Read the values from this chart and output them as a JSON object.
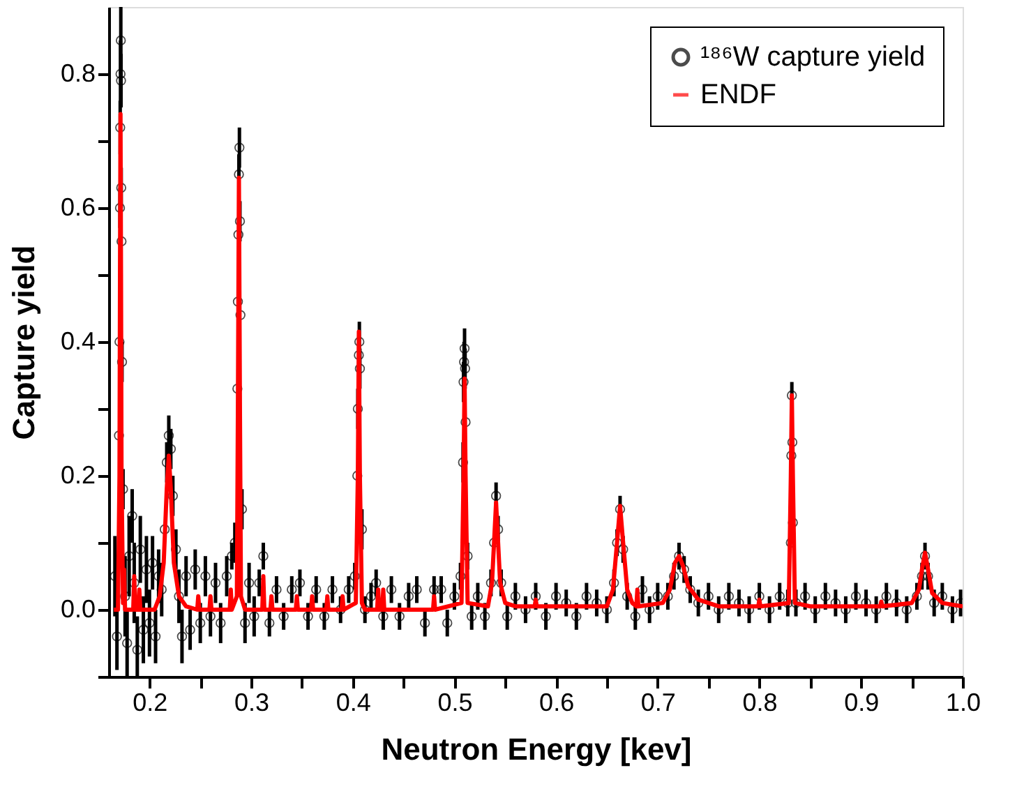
{
  "chart_data": {
    "type": "scatter",
    "xlabel": "Neutron Energy [kev]",
    "ylabel": "Capture yield",
    "xlim": [
      0.16,
      1.0
    ],
    "ylim": [
      -0.1,
      0.9
    ],
    "xticks": [
      0.2,
      {
        "value": 0.25,
        "label": null
      },
      0.3,
      {
        "value": 0.35,
        "label": null
      },
      0.4,
      {
        "value": 0.45,
        "label": null
      },
      0.5,
      {
        "value": 0.55,
        "label": null
      },
      0.6,
      {
        "value": 0.65,
        "label": null
      },
      0.7,
      {
        "value": 0.75,
        "label": null
      },
      0.8,
      {
        "value": 0.85,
        "label": null
      },
      0.9,
      {
        "value": 0.95,
        "label": null
      },
      {
        "value": 1.0,
        "label": "1.0"
      }
    ],
    "yticks": [
      {
        "value": -0.1,
        "label": null
      },
      {
        "value": 0,
        "label": "0.0"
      },
      {
        "value": 0.1,
        "label": null
      },
      0.2,
      {
        "value": 0.3,
        "label": null
      },
      0.4,
      {
        "value": 0.5,
        "label": null
      },
      0.6,
      {
        "value": 0.7,
        "label": null
      },
      0.8
    ],
    "grid": false,
    "legend": "top right",
    "series": [
      {
        "name": "¹⁸⁶W capture yield",
        "color": "#000000",
        "marker": "circle",
        "x": [
          0.166,
          0.168,
          0.17,
          0.1705,
          0.171,
          0.1712,
          0.1715,
          0.1718,
          0.172,
          0.1722,
          0.1725,
          0.173,
          0.174,
          0.176,
          0.178,
          0.18,
          0.183,
          0.185,
          0.188,
          0.191,
          0.194,
          0.197,
          0.2,
          0.203,
          0.206,
          0.209,
          0.212,
          0.215,
          0.217,
          0.219,
          0.221,
          0.223,
          0.226,
          0.229,
          0.232,
          0.236,
          0.24,
          0.245,
          0.25,
          0.255,
          0.26,
          0.265,
          0.27,
          0.276,
          0.281,
          0.284,
          0.2865,
          0.287,
          0.2875,
          0.288,
          0.2885,
          0.289,
          0.2895,
          0.291,
          0.294,
          0.298,
          0.303,
          0.308,
          0.312,
          0.318,
          0.325,
          0.332,
          0.34,
          0.348,
          0.356,
          0.364,
          0.372,
          0.38,
          0.388,
          0.396,
          0.402,
          0.4045,
          0.405,
          0.406,
          0.4065,
          0.407,
          0.409,
          0.412,
          0.418,
          0.423,
          0.43,
          0.438,
          0.446,
          0.455,
          0.463,
          0.471,
          0.48,
          0.487,
          0.493,
          0.5,
          0.506,
          0.5085,
          0.509,
          0.5095,
          0.51,
          0.5105,
          0.511,
          0.513,
          0.517,
          0.523,
          0.53,
          0.536,
          0.539,
          0.541,
          0.543,
          0.546,
          0.552,
          0.56,
          0.57,
          0.58,
          0.59,
          0.6,
          0.61,
          0.62,
          0.63,
          0.64,
          0.65,
          0.657,
          0.66,
          0.663,
          0.666,
          0.67,
          0.678,
          0.685,
          0.692,
          0.7,
          0.71,
          0.716,
          0.721,
          0.726,
          0.732,
          0.74,
          0.75,
          0.76,
          0.77,
          0.78,
          0.79,
          0.8,
          0.81,
          0.82,
          0.828,
          0.831,
          0.8315,
          0.832,
          0.8325,
          0.833,
          0.836,
          0.845,
          0.855,
          0.865,
          0.875,
          0.885,
          0.895,
          0.905,
          0.915,
          0.925,
          0.935,
          0.945,
          0.955,
          0.96,
          0.963,
          0.966,
          0.972,
          0.98,
          0.99,
          0.998
        ],
        "values": [
          0.05,
          -0.04,
          0.26,
          0.4,
          0.6,
          0.72,
          0.8,
          0.85,
          0.79,
          0.63,
          0.55,
          0.37,
          0.18,
          0.02,
          -0.05,
          0.08,
          0.14,
          0.04,
          -0.06,
          0.09,
          -0.03,
          0.06,
          -0.02,
          0.07,
          -0.04,
          0.05,
          0.03,
          0.12,
          0.22,
          0.26,
          0.24,
          0.17,
          0.09,
          0.02,
          -0.04,
          0.05,
          -0.03,
          0.06,
          -0.02,
          0.05,
          -0.01,
          0.04,
          -0.02,
          0.05,
          0.08,
          0.1,
          0.33,
          0.46,
          0.56,
          0.65,
          0.69,
          0.58,
          0.44,
          0.15,
          -0.02,
          0.04,
          -0.01,
          0.04,
          0.08,
          -0.02,
          0.03,
          -0.01,
          0.03,
          0.04,
          -0.01,
          0.03,
          -0.01,
          0.03,
          0.0,
          0.03,
          0.05,
          0.2,
          0.3,
          0.38,
          0.4,
          0.36,
          0.12,
          0.0,
          0.02,
          0.04,
          -0.01,
          0.03,
          -0.01,
          0.02,
          0.03,
          -0.02,
          0.03,
          0.03,
          -0.02,
          0.02,
          0.05,
          0.22,
          0.34,
          0.37,
          0.39,
          0.36,
          0.28,
          0.08,
          -0.01,
          0.02,
          -0.01,
          0.04,
          0.1,
          0.17,
          0.12,
          0.04,
          -0.01,
          0.02,
          0.0,
          0.02,
          -0.01,
          0.02,
          0.01,
          -0.01,
          0.02,
          0.01,
          0.0,
          0.04,
          0.1,
          0.15,
          0.09,
          0.02,
          -0.01,
          0.03,
          0.0,
          0.02,
          0.02,
          0.05,
          0.08,
          0.06,
          0.03,
          0.01,
          0.02,
          0.0,
          0.02,
          0.01,
          0.0,
          0.02,
          0.0,
          0.02,
          0.01,
          0.1,
          0.23,
          0.32,
          0.25,
          0.13,
          0.01,
          0.02,
          0.0,
          0.02,
          0.01,
          0.0,
          0.02,
          0.01,
          0.0,
          0.02,
          0.01,
          0.0,
          0.02,
          0.05,
          0.08,
          0.05,
          0.01,
          0.02,
          0.0,
          0.01
        ],
        "errors": [
          0.06,
          0.05,
          null,
          null,
          0.03,
          0.04,
          0.05,
          0.05,
          0.04,
          0.03,
          null,
          0.03,
          0.03,
          0.06,
          0.05,
          0.06,
          0.04,
          0.06,
          0.05,
          0.05,
          0.05,
          0.05,
          0.05,
          0.04,
          0.04,
          0.04,
          0.04,
          null,
          0.03,
          0.03,
          0.03,
          0.03,
          0.03,
          0.04,
          0.04,
          0.03,
          0.03,
          0.03,
          0.03,
          0.03,
          0.03,
          0.03,
          0.03,
          0.03,
          0.02,
          0.03,
          null,
          null,
          null,
          0.03,
          0.03,
          0.03,
          null,
          0.03,
          0.03,
          0.03,
          0.03,
          0.02,
          0.02,
          0.02,
          0.02,
          0.02,
          0.02,
          0.02,
          0.02,
          0.02,
          0.02,
          0.02,
          0.02,
          0.02,
          0.02,
          null,
          0.03,
          0.03,
          0.03,
          0.03,
          0.03,
          0.02,
          0.02,
          0.02,
          0.02,
          0.02,
          0.02,
          0.02,
          0.02,
          0.02,
          0.02,
          0.02,
          0.02,
          0.02,
          0.02,
          0.03,
          0.03,
          0.03,
          0.03,
          0.03,
          null,
          0.02,
          0.02,
          0.02,
          0.02,
          0.02,
          null,
          0.02,
          0.02,
          0.02,
          0.02,
          0.02,
          0.02,
          0.02,
          0.02,
          0.02,
          0.02,
          0.02,
          0.02,
          0.02,
          0.02,
          0.02,
          0.02,
          0.02,
          0.02,
          0.02,
          0.02,
          0.02,
          0.02,
          0.02,
          0.02,
          0.02,
          0.02,
          0.02,
          0.02,
          0.02,
          0.02,
          0.02,
          0.02,
          0.02,
          0.02,
          0.02,
          0.02,
          0.02,
          0.02,
          null,
          0.02,
          0.02,
          null,
          null,
          0.02,
          0.02,
          0.02,
          0.02,
          0.02,
          0.02,
          0.02,
          0.02,
          0.02,
          0.02,
          0.02,
          0.02,
          0.02,
          0.02,
          0.02,
          0.02,
          0.02,
          0.02,
          0.02,
          0.02
        ]
      },
      {
        "name": "ENDF",
        "color": "#ff0000",
        "type": "line",
        "x": [
          0.165,
          0.169,
          0.1705,
          0.171,
          0.1715,
          0.172,
          0.1725,
          0.174,
          0.175,
          0.176,
          0.184,
          0.185,
          0.186,
          0.189,
          0.19,
          0.191,
          0.205,
          0.21,
          0.214,
          0.217,
          0.219,
          0.221,
          0.224,
          0.229,
          0.236,
          0.247,
          0.248,
          0.249,
          0.259,
          0.26,
          0.261,
          0.279,
          0.28,
          0.281,
          0.286,
          0.287,
          0.288,
          0.289,
          0.29,
          0.294,
          0.311,
          0.312,
          0.313,
          0.319,
          0.32,
          0.321,
          0.344,
          0.345,
          0.346,
          0.359,
          0.36,
          0.361,
          0.374,
          0.375,
          0.376,
          0.389,
          0.39,
          0.391,
          0.403,
          0.405,
          0.406,
          0.407,
          0.409,
          0.412,
          0.424,
          0.425,
          0.426,
          0.429,
          0.43,
          0.431,
          0.479,
          0.48,
          0.481,
          0.507,
          0.509,
          0.51,
          0.511,
          0.513,
          0.533,
          0.537,
          0.539,
          0.541,
          0.543,
          0.545,
          0.55,
          0.56,
          0.579,
          0.58,
          0.581,
          0.65,
          0.656,
          0.66,
          0.663,
          0.666,
          0.67,
          0.675,
          0.679,
          0.68,
          0.681,
          0.705,
          0.712,
          0.717,
          0.721,
          0.725,
          0.73,
          0.74,
          0.76,
          0.799,
          0.8,
          0.801,
          0.829,
          0.831,
          0.832,
          0.833,
          0.835,
          0.85,
          0.919,
          0.92,
          0.921,
          0.95,
          0.957,
          0.96,
          0.963,
          0.966,
          0.97,
          0.98,
          1.0
        ],
        "values": [
          0.0,
          0.0,
          0.2,
          0.5,
          0.74,
          0.5,
          0.2,
          0.01,
          0.06,
          0.0,
          0.0,
          0.05,
          0.0,
          0.0,
          0.03,
          0.0,
          0.0,
          0.02,
          0.07,
          0.18,
          0.23,
          0.18,
          0.07,
          0.02,
          0.005,
          0.0,
          0.02,
          0.0,
          0.0,
          0.02,
          0.0,
          0.0,
          0.03,
          0.0,
          0.02,
          0.3,
          0.645,
          0.3,
          0.02,
          0.0,
          0.0,
          0.05,
          0.0,
          0.0,
          0.02,
          0.0,
          0.0,
          0.02,
          0.0,
          0.0,
          0.02,
          0.0,
          0.0,
          0.02,
          0.0,
          0.0,
          0.02,
          0.0,
          0.01,
          0.2,
          0.415,
          0.2,
          0.01,
          0.0,
          0.0,
          0.03,
          0.0,
          0.0,
          0.03,
          0.0,
          0.0,
          0.02,
          0.0,
          0.01,
          0.2,
          0.345,
          0.2,
          0.01,
          0.005,
          0.04,
          0.1,
          0.16,
          0.1,
          0.04,
          0.01,
          0.005,
          0.005,
          0.015,
          0.005,
          0.005,
          0.03,
          0.1,
          0.155,
          0.1,
          0.03,
          0.01,
          0.005,
          0.03,
          0.005,
          0.01,
          0.03,
          0.07,
          0.08,
          0.065,
          0.035,
          0.015,
          0.005,
          0.005,
          0.015,
          0.005,
          0.01,
          0.2,
          0.32,
          0.2,
          0.01,
          0.005,
          0.005,
          0.012,
          0.005,
          0.01,
          0.03,
          0.06,
          0.085,
          0.06,
          0.025,
          0.01,
          0.005
        ]
      }
    ]
  }
}
